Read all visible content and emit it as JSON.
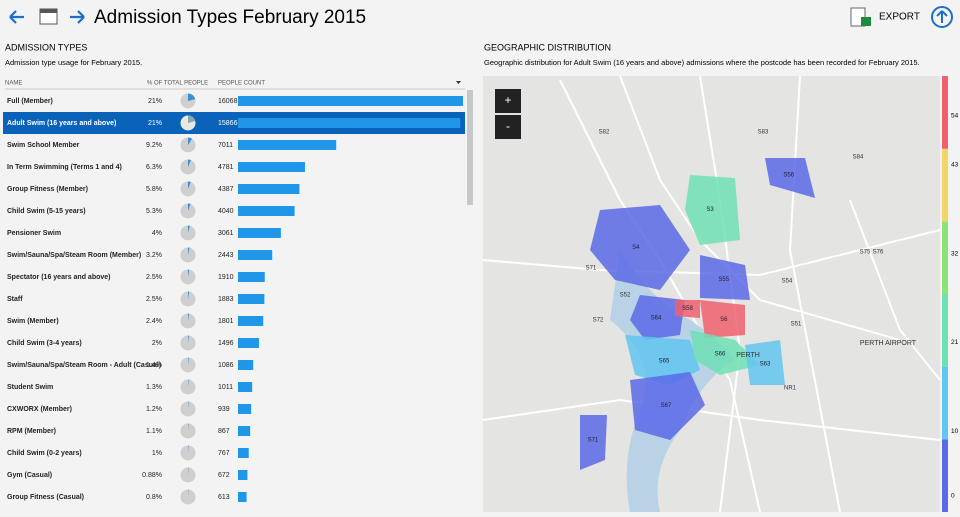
{
  "header": {
    "title": "Admission Types February 2015",
    "export": "EXPORT"
  },
  "left": {
    "heading": "ADMISSION TYPES",
    "subtitle": "Admission type usage for February 2015."
  },
  "table": {
    "columns": [
      "NAME",
      "% OF TOTAL PEOPLE",
      "PEOPLE COUNT"
    ],
    "selected": 1,
    "rows": [
      {
        "name": "Full (Member)",
        "percent": 21,
        "percent_label": "21%",
        "count": 16068
      },
      {
        "name": "Adult Swim (16 years and above)",
        "percent": 21,
        "percent_label": "21%",
        "count": 15866
      },
      {
        "name": "Swim School Member",
        "percent": 9.2,
        "percent_label": "9.2%",
        "count": 7011
      },
      {
        "name": "In Term Swimming (Terms 1 and 4)",
        "percent": 6.3,
        "percent_label": "6.3%",
        "count": 4781
      },
      {
        "name": "Group Fitness (Member)",
        "percent": 5.8,
        "percent_label": "5.8%",
        "count": 4387
      },
      {
        "name": "Child Swim (5-15 years)",
        "percent": 5.3,
        "percent_label": "5.3%",
        "count": 4040
      },
      {
        "name": "Pensioner Swim",
        "percent": 4,
        "percent_label": "4%",
        "count": 3061
      },
      {
        "name": "Swim/Sauna/Spa/Steam Room (Member)",
        "percent": 3.2,
        "percent_label": "3.2%",
        "count": 2443
      },
      {
        "name": "Spectator (16 years and above)",
        "percent": 2.5,
        "percent_label": "2.5%",
        "count": 1910
      },
      {
        "name": "Staff",
        "percent": 2.5,
        "percent_label": "2.5%",
        "count": 1883
      },
      {
        "name": "Swim (Member)",
        "percent": 2.4,
        "percent_label": "2.4%",
        "count": 1801
      },
      {
        "name": "Child Swim (3-4 years)",
        "percent": 2,
        "percent_label": "2%",
        "count": 1496
      },
      {
        "name": "Swim/Sauna/Spa/Steam Room - Adult (Casual)",
        "percent": 1.4,
        "percent_label": "1.4%",
        "count": 1086
      },
      {
        "name": "Student Swim",
        "percent": 1.3,
        "percent_label": "1.3%",
        "count": 1011
      },
      {
        "name": "CXWORX (Member)",
        "percent": 1.2,
        "percent_label": "1.2%",
        "count": 939
      },
      {
        "name": "RPM (Member)",
        "percent": 1.1,
        "percent_label": "1.1%",
        "count": 867
      },
      {
        "name": "Child Swim (0-2 years)",
        "percent": 1,
        "percent_label": "1%",
        "count": 767
      },
      {
        "name": "Gym (Casual)",
        "percent": 0.88,
        "percent_label": "0.88%",
        "count": 672
      },
      {
        "name": "Group Fitness (Casual)",
        "percent": 0.8,
        "percent_label": "0.8%",
        "count": 613
      }
    ]
  },
  "map": {
    "heading": "GEOGRAPHIC DISTRIBUTION",
    "subtitle": "Geographic distribution for Adult Swim (16 years and above) admissions where the postcode has been recorded for February 2015.",
    "zoom": [
      "+",
      "-"
    ],
    "scale": {
      "lim": [
        0,
        54
      ],
      "ticks": [
        0,
        10,
        21,
        32,
        43,
        54
      ],
      "colors": [
        "#5a6ae6",
        "#62c6f0",
        "#6ee0b4",
        "#8ee27a",
        "#f2d46a",
        "#f0606e"
      ]
    },
    "regions": [
      {
        "label": "S6",
        "value": 54
      },
      {
        "label": "S3",
        "value": 26
      },
      {
        "label": "S4",
        "value": 8
      },
      {
        "label": "S64",
        "value": 6
      },
      {
        "label": "S65",
        "value": 16
      },
      {
        "label": "S66",
        "value": 23
      },
      {
        "label": "S67",
        "value": 3
      },
      {
        "label": "S56",
        "value": 2
      },
      {
        "label": "S71",
        "value": 2
      },
      {
        "label": "S63",
        "value": 14
      },
      {
        "label": "S55",
        "value": 4
      },
      {
        "label": "S58",
        "value": 45
      }
    ],
    "places": [
      "PERTH",
      "PERTH AIRPORT",
      "S82",
      "S83",
      "S84",
      "S51",
      "S52",
      "S71",
      "S72",
      "S75",
      "S76",
      "NR1",
      "S54"
    ]
  }
}
